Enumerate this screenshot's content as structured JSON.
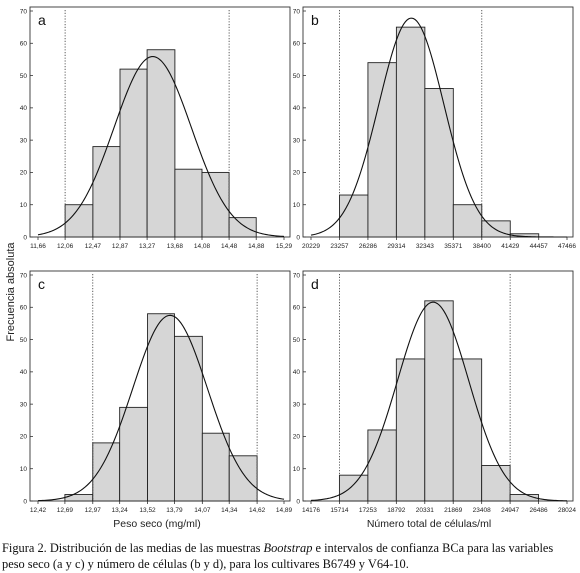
{
  "figure": {
    "ylabel": "Frecuencia absoluta",
    "xlabel_left": "Peso seco (mg/ml)",
    "xlabel_right": "Número total de células/ml",
    "caption": {
      "part1": "Figura 2. Distribución de las medias de las muestras ",
      "italic": "Bootstrap",
      "part2": " e intervalos de confianza BCa para las variables peso seco (a y c) y número de células (b y d), para los cultivares B6749 y V64-10."
    }
  },
  "chart_data": [
    {
      "type": "bar",
      "panel": "a",
      "ylim": [
        0,
        70
      ],
      "yticks": [
        "0",
        "10",
        "20",
        "30",
        "40",
        "50",
        "60",
        "70"
      ],
      "xticks": [
        "11,66",
        "12,06",
        "12,47",
        "12,87",
        "13,27",
        "13,68",
        "14,08",
        "14,48",
        "14,88",
        "15,29"
      ],
      "bin_edges": [
        "12,06",
        "12,47",
        "12,87",
        "13,27",
        "13,68",
        "14,08",
        "14,48",
        "14,88"
      ],
      "values": [
        10,
        28,
        52,
        58,
        21,
        20,
        6
      ],
      "ci_lower": "12,06",
      "ci_upper": "14,48",
      "grid": false
    },
    {
      "type": "bar",
      "panel": "b",
      "ylim": [
        0,
        70
      ],
      "yticks": [
        "0",
        "10",
        "20",
        "30",
        "40",
        "50",
        "60",
        "70"
      ],
      "xticks": [
        "20229",
        "23257",
        "26286",
        "29314",
        "32343",
        "35371",
        "38400",
        "41429",
        "44457",
        "47466"
      ],
      "bin_edges": [
        "23257",
        "26286",
        "29314",
        "32343",
        "35371",
        "38400",
        "41429",
        "44457"
      ],
      "values": [
        13,
        54,
        65,
        46,
        10,
        5,
        1
      ],
      "ci_lower": "23257",
      "ci_upper": "38400",
      "grid": false
    },
    {
      "type": "bar",
      "panel": "c",
      "ylim": [
        0,
        70
      ],
      "yticks": [
        "0",
        "10",
        "20",
        "30",
        "40",
        "50",
        "60",
        "70"
      ],
      "xticks": [
        "12,42",
        "12,69",
        "12,97",
        "13,24",
        "13,52",
        "13,79",
        "14,07",
        "14,34",
        "14,62",
        "14,89"
      ],
      "bin_edges": [
        "12,69",
        "12,97",
        "13,24",
        "13,52",
        "13,79",
        "14,07",
        "14,34",
        "14,62"
      ],
      "values": [
        2,
        18,
        29,
        58,
        51,
        21,
        14
      ],
      "ci_lower": "12,97",
      "ci_upper": "14,62",
      "grid": false
    },
    {
      "type": "bar",
      "panel": "d",
      "ylim": [
        0,
        70
      ],
      "yticks": [
        "0",
        "10",
        "20",
        "30",
        "40",
        "50",
        "60",
        "70"
      ],
      "xticks": [
        "14176",
        "15714",
        "17253",
        "18792",
        "20331",
        "21869",
        "23408",
        "24947",
        "26486",
        "28024"
      ],
      "bin_edges": [
        "15714",
        "17253",
        "18792",
        "20331",
        "21869",
        "23408",
        "24947",
        "26486"
      ],
      "values": [
        8,
        22,
        44,
        62,
        44,
        11,
        2
      ],
      "ci_lower": "15714",
      "ci_upper": "24947",
      "grid": false
    }
  ]
}
